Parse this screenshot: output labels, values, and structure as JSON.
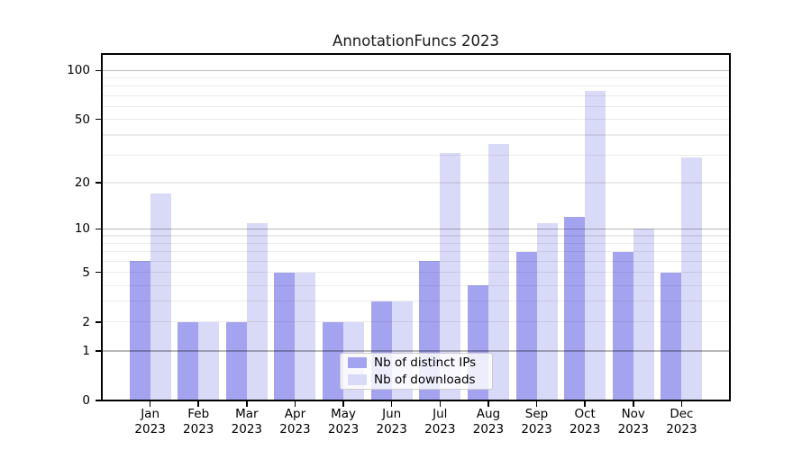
{
  "title": "AnnotationFuncs 2023",
  "colors": {
    "background": "#ffffff",
    "bar_ips": "#a3a3f0",
    "bar_downloads": "#d9d9f8",
    "grid_minor": "rgba(0,0,0,0.08)",
    "grid_major": "rgba(0,0,0,0.28)",
    "axis": "#000000"
  },
  "legend": {
    "position": "lower center",
    "items": [
      {
        "label": "Nb of distinct IPs",
        "color": "#a3a3f0"
      },
      {
        "label": "Nb of downloads",
        "color": "#d9d9f8"
      }
    ]
  },
  "chart_data": {
    "type": "bar",
    "title": "AnnotationFuncs 2023",
    "categories": [
      "Jan 2023",
      "Feb 2023",
      "Mar 2023",
      "Apr 2023",
      "May 2023",
      "Jun 2023",
      "Jul 2023",
      "Aug 2023",
      "Sep 2023",
      "Oct 2023",
      "Nov 2023",
      "Dec 2023"
    ],
    "series": [
      {
        "name": "Nb of distinct IPs",
        "color": "#a3a3f0",
        "values": [
          6,
          2,
          2,
          5,
          2,
          3,
          6,
          4,
          7,
          12,
          7,
          5
        ]
      },
      {
        "name": "Nb of downloads",
        "color": "#d9d9f8",
        "values": [
          17,
          2,
          11,
          5,
          2,
          3,
          31,
          35,
          11,
          75,
          10,
          29
        ]
      }
    ],
    "xlabel": "",
    "ylabel": "",
    "yscale": "log1p",
    "ylim": [
      0,
      126
    ],
    "y_ticks": [
      0,
      1,
      2,
      5,
      10,
      20,
      50,
      100
    ],
    "y_major_gridlines": [
      1,
      10,
      100
    ],
    "y_minor_gridlines": [
      2,
      3,
      4,
      5,
      6,
      7,
      8,
      9,
      20,
      30,
      40,
      50,
      60,
      70,
      80,
      90
    ],
    "grid": "on",
    "legend_position": "lower center"
  }
}
